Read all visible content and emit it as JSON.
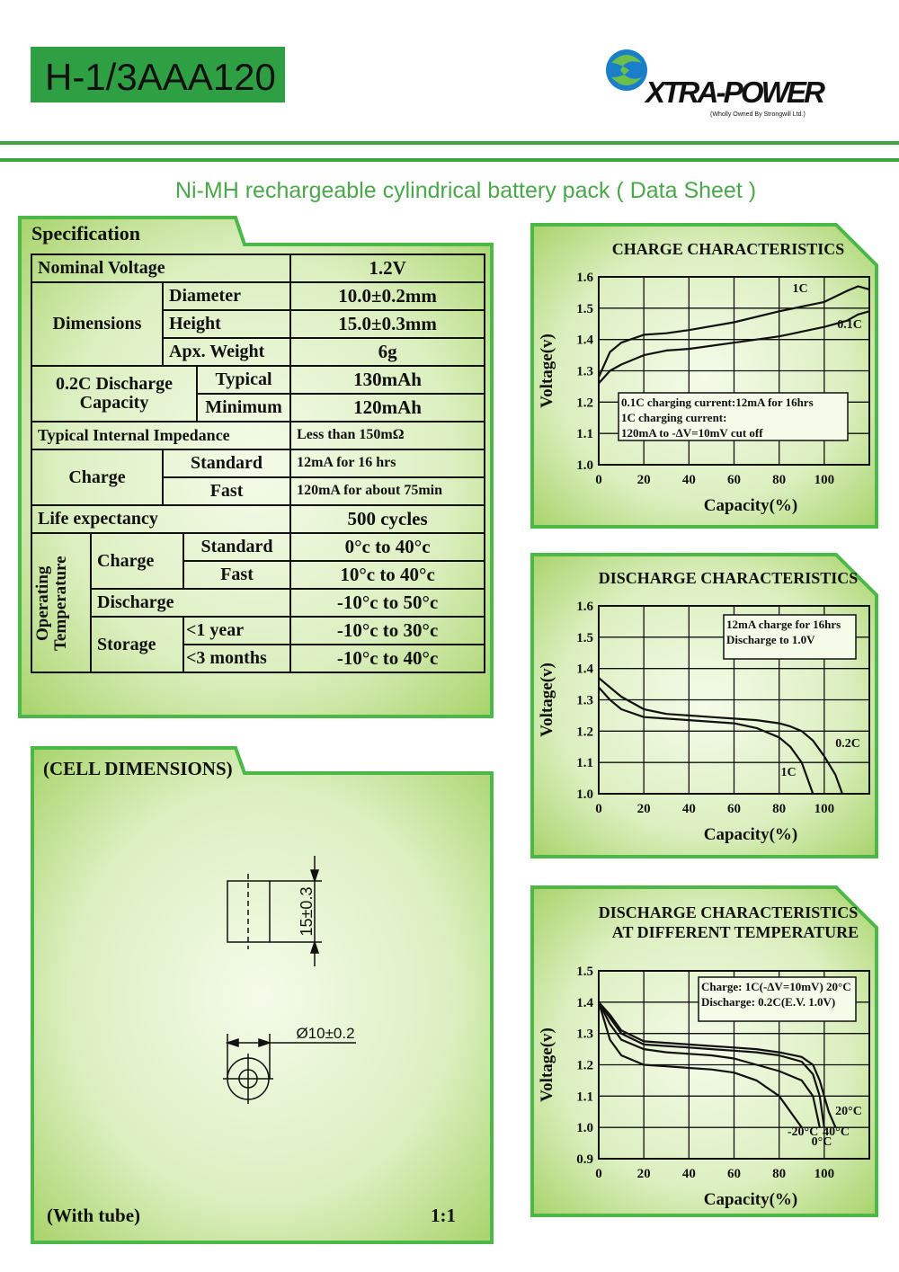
{
  "header": {
    "model": "H-1/3AAA120",
    "brand": "XTRA-POWER",
    "brand_note": "(Wholly Owned By Strongwill Ltd.)",
    "subtitle": "Ni-MH rechargeable cylindrical battery  pack  ( Data Sheet )"
  },
  "specification": {
    "title": "Specification",
    "nominal_voltage": [
      "Nominal Voltage",
      "1.2V"
    ],
    "dimensions": {
      "label": "Dimensions",
      "items": [
        [
          "Diameter",
          "10.0±0.2mm"
        ],
        [
          "Height",
          "15.0±0.3mm"
        ],
        [
          "Apx. Weight",
          "6g"
        ]
      ]
    },
    "capacity": {
      "label": "0.2C Discharge Capacity",
      "items": [
        [
          "Typical",
          "130mAh"
        ],
        [
          "Minimum",
          "120mAh"
        ]
      ]
    },
    "impedance": [
      "Typical Internal Impedance",
      "Less than 150mΩ"
    ],
    "charge": {
      "label": "Charge",
      "items": [
        [
          "Standard",
          "12mA for 16 hrs"
        ],
        [
          "Fast",
          "120mA for about 75min"
        ]
      ]
    },
    "life": [
      "Life expectancy",
      "500 cycles"
    ],
    "operating_temperature": {
      "label": "Operating Temperature",
      "charge_label": "Charge",
      "charge": [
        [
          "Standard",
          "0°c to 40°c"
        ],
        [
          "Fast",
          "10°c to 40°c"
        ]
      ],
      "discharge": [
        "Discharge",
        "-10°c to 50°c"
      ],
      "storage_label": "Storage",
      "storage": [
        [
          "<1 year",
          "-10°c to 30°c"
        ],
        [
          "<3 months",
          "-10°c to 40°c"
        ]
      ]
    }
  },
  "cell_dimensions": {
    "title": "(CELL DIMENSIONS)",
    "height": "15±0.3",
    "diameter": "Ø10±0.2",
    "note": "(With tube)",
    "scale": "1:1"
  },
  "chart_data": [
    {
      "type": "line",
      "title": "CHARGE CHARACTERISTICS",
      "xlabel": "Capacity(%)",
      "ylabel": "Voltage(v)",
      "x": [
        0,
        5,
        10,
        20,
        30,
        40,
        60,
        80,
        100,
        110,
        115,
        120
      ],
      "series": [
        {
          "name": "1C",
          "color": "#111111",
          "values": [
            1.28,
            1.36,
            1.39,
            1.415,
            1.42,
            1.43,
            1.455,
            1.49,
            1.52,
            1.555,
            1.57,
            1.56
          ]
        },
        {
          "name": "0.1C",
          "color": "#111111",
          "values": [
            1.26,
            1.3,
            1.32,
            1.35,
            1.365,
            1.37,
            1.39,
            1.41,
            1.44,
            1.46,
            1.48,
            1.49
          ]
        }
      ],
      "xlim": [
        0,
        120
      ],
      "ylim": [
        1.0,
        1.6
      ],
      "xticks": [
        0,
        20,
        40,
        60,
        80,
        100
      ],
      "yticks": [
        {
          "value": 1.0,
          "label": "1.0"
        },
        1.1,
        1.2,
        1.3,
        1.4,
        1.5,
        1.6
      ],
      "grid": true,
      "annotations": [
        "0.1C charging current:12mA for 16hrs",
        "1C charging current:",
        "120mA to -ΔV=10mV cut off"
      ]
    },
    {
      "type": "line",
      "title": "DISCHARGE CHARACTERISTICS",
      "xlabel": "Capacity(%)",
      "ylabel": "Voltage(v)",
      "x": [
        0,
        5,
        10,
        20,
        30,
        40,
        50,
        60,
        70,
        80,
        85,
        90,
        95,
        100,
        105,
        108
      ],
      "series": [
        {
          "name": "0.2C",
          "color": "#111111",
          "values": [
            1.37,
            1.34,
            1.31,
            1.27,
            1.255,
            1.25,
            1.245,
            1.24,
            1.235,
            1.225,
            1.215,
            1.2,
            1.17,
            1.12,
            1.06,
            1.0
          ]
        },
        {
          "name": "1C",
          "color": "#111111",
          "values": [
            1.34,
            1.3,
            1.27,
            1.245,
            1.24,
            1.235,
            1.23,
            1.225,
            1.21,
            1.18,
            1.15,
            1.1,
            1.0,
            null,
            null,
            null
          ]
        }
      ],
      "xlim": [
        0,
        120
      ],
      "ylim": [
        1.0,
        1.6
      ],
      "xticks": [
        0,
        20,
        40,
        60,
        80,
        100
      ],
      "yticks": [
        {
          "value": 1.0,
          "label": "1.0"
        },
        1.1,
        1.2,
        1.3,
        1.4,
        1.5,
        1.6
      ],
      "grid": true,
      "annotations": [
        "12mA charge for 16hrs",
        "Discharge to 1.0V"
      ]
    },
    {
      "type": "line",
      "title": "DISCHARGE CHARACTERISTICS",
      "subtitle": "AT DIFFERENT TEMPERATURE",
      "xlabel": "Capacity(%)",
      "ylabel": "Voltage(v)",
      "x": [
        0,
        5,
        10,
        20,
        30,
        40,
        50,
        60,
        70,
        80,
        90,
        95,
        98,
        100,
        102,
        105
      ],
      "series": [
        {
          "name": "20°C",
          "color": "#111111",
          "values": [
            1.4,
            1.36,
            1.31,
            1.275,
            1.27,
            1.265,
            1.26,
            1.255,
            1.25,
            1.24,
            1.225,
            1.2,
            1.15,
            1.1,
            1.05,
            1.0
          ]
        },
        {
          "name": "-20°C",
          "color": "#111111",
          "values": [
            1.4,
            1.28,
            1.23,
            1.2,
            1.195,
            1.19,
            1.185,
            1.175,
            1.15,
            1.1,
            1.0,
            null,
            null,
            null,
            null,
            null
          ]
        },
        {
          "name": "40°C",
          "color": "#111111",
          "values": [
            1.4,
            1.35,
            1.3,
            1.265,
            1.26,
            1.255,
            1.25,
            1.245,
            1.24,
            1.23,
            1.21,
            1.17,
            1.1,
            1.0,
            null,
            null
          ]
        },
        {
          "name": "0°C",
          "color": "#111111",
          "values": [
            1.4,
            1.33,
            1.28,
            1.25,
            1.24,
            1.235,
            1.23,
            1.22,
            1.2,
            1.18,
            1.15,
            1.1,
            1.0,
            null,
            null,
            null
          ]
        }
      ],
      "xlim": [
        0,
        120
      ],
      "ylim": [
        0.9,
        1.5
      ],
      "xticks": [
        0,
        20,
        40,
        60,
        80,
        100
      ],
      "yticks": [
        0.9,
        {
          "value": 1.0,
          "label": "1.0"
        },
        1.1,
        1.2,
        1.3,
        1.4,
        1.5
      ],
      "grid": true,
      "annotations": [
        "Charge: 1C(-ΔV=10mV) 20°C",
        "Discharge: 0.2C(E.V. 1.0V)"
      ]
    }
  ]
}
